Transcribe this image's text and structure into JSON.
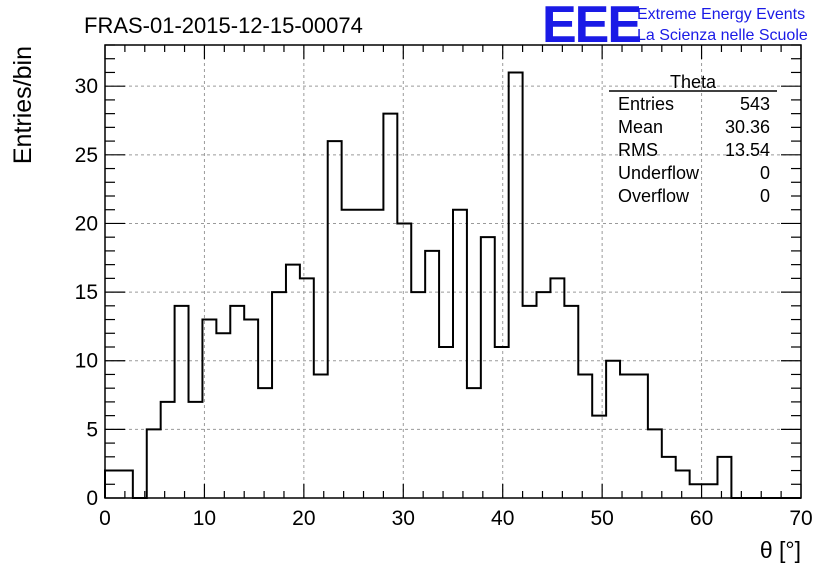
{
  "chart_data": {
    "type": "bar",
    "title": "FRAS-01-2015-12-15-00074",
    "xlabel": "θ [°]",
    "ylabel": "Entries/bin",
    "xlim": [
      0,
      70
    ],
    "ylim": [
      0,
      33
    ],
    "grid": true,
    "bin_width": 1.4,
    "values": [
      2,
      2,
      0,
      5,
      7,
      14,
      7,
      13,
      12,
      14,
      13,
      8,
      15,
      17,
      16,
      9,
      26,
      21,
      21,
      21,
      28,
      20,
      15,
      18,
      11,
      21,
      8,
      19,
      11,
      31,
      14,
      15,
      16,
      14,
      9,
      6,
      10,
      9,
      9,
      5,
      3,
      2,
      1,
      1,
      3,
      0,
      0,
      0,
      0,
      0
    ],
    "x_ticks": [
      0,
      10,
      20,
      30,
      40,
      50,
      60,
      70
    ],
    "y_ticks": [
      0,
      5,
      10,
      15,
      20,
      25,
      30
    ],
    "stats_box": {
      "name": "Theta",
      "rows": [
        {
          "label": "Entries",
          "value": "543"
        },
        {
          "label": "Mean",
          "value": "30.36"
        },
        {
          "label": "RMS",
          "value": "13.54"
        },
        {
          "label": "Underflow",
          "value": "0"
        },
        {
          "label": "Overflow",
          "value": "0"
        }
      ]
    }
  },
  "logo": {
    "letters": "EEE",
    "line1": "Extreme Energy Events",
    "line2": "La Scienza nelle Scuole",
    "color": "#1a1ae6"
  }
}
